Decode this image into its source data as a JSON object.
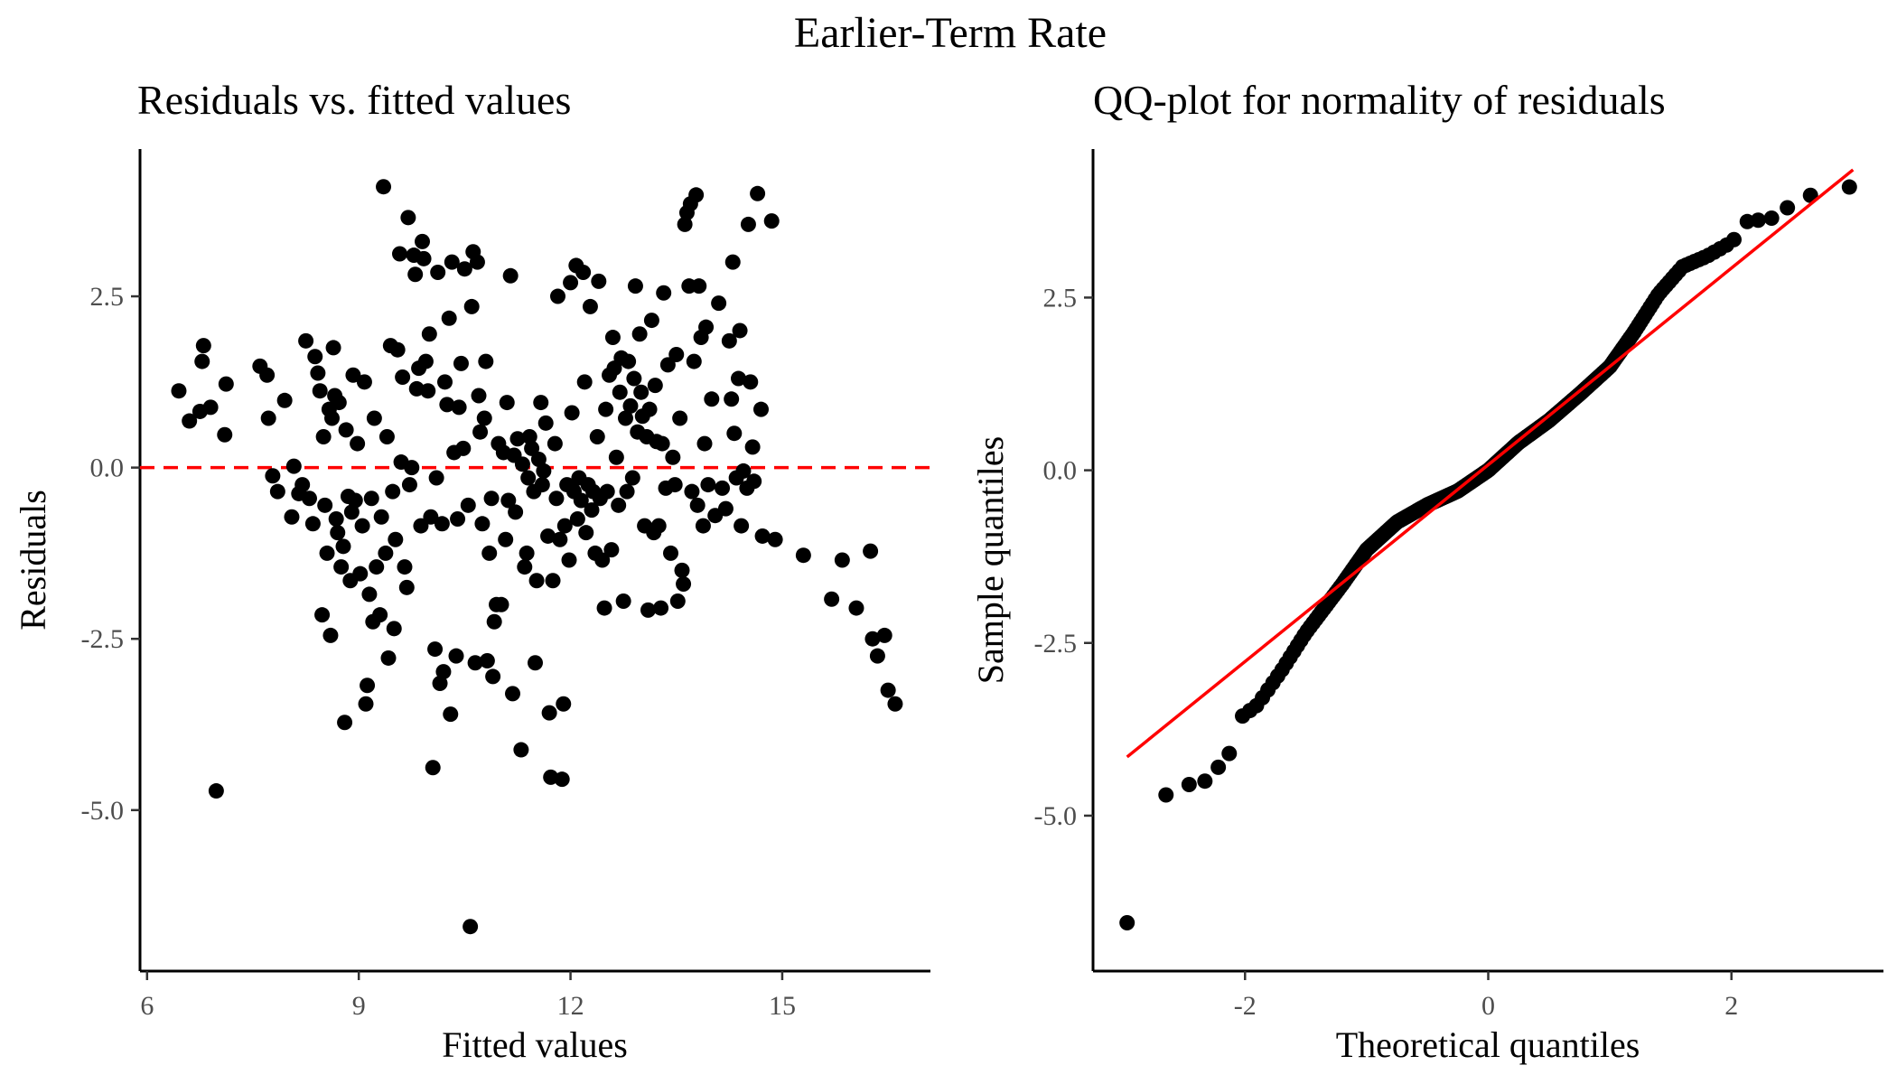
{
  "figure_title": "Earlier-Term Rate",
  "chart_data": [
    {
      "type": "scatter",
      "title": "Residuals vs. fitted values",
      "xlabel": "Fitted values",
      "ylabel": "Residuals",
      "xlim": [
        5.9,
        17.1
      ],
      "ylim": [
        -7.35,
        4.65
      ],
      "xticks": [
        6,
        9,
        12,
        15
      ],
      "yticks": [
        -5.0,
        -2.5,
        0.0,
        2.5
      ],
      "xtick_labels": [
        "6",
        "9",
        "12",
        "15"
      ],
      "ytick_labels": [
        "-5.0",
        "-2.5",
        "0.0",
        "2.5"
      ],
      "grid": false,
      "reference_line": {
        "y": 0,
        "style": "dashed",
        "color": "#ff0000"
      },
      "point_color": "#000000",
      "points": [
        [
          6.45,
          1.12
        ],
        [
          6.6,
          0.68
        ],
        [
          6.75,
          0.82
        ],
        [
          6.8,
          1.78
        ],
        [
          6.78,
          1.55
        ],
        [
          6.9,
          0.88
        ],
        [
          6.98,
          -4.72
        ],
        [
          7.1,
          0.48
        ],
        [
          7.12,
          1.22
        ],
        [
          7.6,
          1.48
        ],
        [
          7.7,
          1.35
        ],
        [
          7.72,
          0.72
        ],
        [
          7.78,
          -0.12
        ],
        [
          7.85,
          -0.35
        ],
        [
          7.95,
          0.98
        ],
        [
          8.05,
          -0.72
        ],
        [
          8.08,
          0.02
        ],
        [
          8.15,
          -0.38
        ],
        [
          8.2,
          -0.25
        ],
        [
          8.25,
          1.85
        ],
        [
          8.3,
          -0.45
        ],
        [
          8.35,
          -0.82
        ],
        [
          8.38,
          1.62
        ],
        [
          8.42,
          1.38
        ],
        [
          8.45,
          1.12
        ],
        [
          8.48,
          -2.15
        ],
        [
          8.5,
          0.45
        ],
        [
          8.52,
          -0.55
        ],
        [
          8.55,
          -1.25
        ],
        [
          8.58,
          0.85
        ],
        [
          8.6,
          -2.45
        ],
        [
          8.62,
          0.72
        ],
        [
          8.64,
          1.75
        ],
        [
          8.66,
          1.05
        ],
        [
          8.68,
          -0.75
        ],
        [
          8.7,
          -0.95
        ],
        [
          8.72,
          0.95
        ],
        [
          8.75,
          -1.45
        ],
        [
          8.78,
          -1.15
        ],
        [
          8.8,
          -3.72
        ],
        [
          8.82,
          0.55
        ],
        [
          8.85,
          -0.42
        ],
        [
          8.88,
          -1.65
        ],
        [
          8.9,
          -0.65
        ],
        [
          8.92,
          1.35
        ],
        [
          8.95,
          -0.48
        ],
        [
          8.98,
          0.35
        ],
        [
          9.02,
          -1.55
        ],
        [
          9.05,
          -0.85
        ],
        [
          9.08,
          1.25
        ],
        [
          9.1,
          -3.45
        ],
        [
          9.12,
          -3.18
        ],
        [
          9.15,
          -1.85
        ],
        [
          9.18,
          -0.45
        ],
        [
          9.2,
          -2.25
        ],
        [
          9.22,
          0.72
        ],
        [
          9.25,
          -1.45
        ],
        [
          9.3,
          -2.15
        ],
        [
          9.32,
          -0.72
        ],
        [
          9.35,
          4.1
        ],
        [
          9.38,
          -1.25
        ],
        [
          9.4,
          0.45
        ],
        [
          9.42,
          -2.78
        ],
        [
          9.45,
          1.78
        ],
        [
          9.48,
          -0.35
        ],
        [
          9.5,
          -2.35
        ],
        [
          9.52,
          -1.05
        ],
        [
          9.55,
          1.72
        ],
        [
          9.58,
          3.12
        ],
        [
          9.6,
          0.08
        ],
        [
          9.62,
          1.32
        ],
        [
          9.65,
          -1.45
        ],
        [
          9.68,
          -1.75
        ],
        [
          9.7,
          3.65
        ],
        [
          9.72,
          -0.25
        ],
        [
          9.75,
          0.0
        ],
        [
          9.78,
          3.1
        ],
        [
          9.8,
          2.82
        ],
        [
          9.82,
          1.15
        ],
        [
          9.85,
          1.45
        ],
        [
          9.88,
          -0.85
        ],
        [
          9.9,
          3.3
        ],
        [
          9.92,
          3.05
        ],
        [
          9.95,
          1.55
        ],
        [
          9.98,
          1.12
        ],
        [
          10.0,
          1.95
        ],
        [
          10.02,
          -0.72
        ],
        [
          10.05,
          -4.38
        ],
        [
          10.08,
          -2.65
        ],
        [
          10.1,
          -0.15
        ],
        [
          10.12,
          2.85
        ],
        [
          10.15,
          -3.15
        ],
        [
          10.18,
          -0.82
        ],
        [
          10.2,
          -2.98
        ],
        [
          10.22,
          1.25
        ],
        [
          10.25,
          0.92
        ],
        [
          10.28,
          2.18
        ],
        [
          10.3,
          -3.6
        ],
        [
          10.32,
          3.0
        ],
        [
          10.35,
          0.22
        ],
        [
          10.38,
          -2.75
        ],
        [
          10.4,
          -0.75
        ],
        [
          10.42,
          0.88
        ],
        [
          10.45,
          1.52
        ],
        [
          10.48,
          0.28
        ],
        [
          10.5,
          2.9
        ],
        [
          10.55,
          -0.55
        ],
        [
          10.58,
          -6.7
        ],
        [
          10.6,
          2.35
        ],
        [
          10.62,
          3.15
        ],
        [
          10.65,
          -2.85
        ],
        [
          10.68,
          3.0
        ],
        [
          10.7,
          1.05
        ],
        [
          10.72,
          0.52
        ],
        [
          10.75,
          -0.82
        ],
        [
          10.78,
          0.72
        ],
        [
          10.8,
          1.55
        ],
        [
          10.82,
          -2.82
        ],
        [
          10.85,
          -1.25
        ],
        [
          10.88,
          -0.45
        ],
        [
          10.9,
          -3.05
        ],
        [
          10.92,
          -2.25
        ],
        [
          10.95,
          -2.0
        ],
        [
          10.98,
          0.35
        ],
        [
          11.02,
          -2.0
        ],
        [
          11.05,
          0.22
        ],
        [
          11.08,
          -1.05
        ],
        [
          11.1,
          0.95
        ],
        [
          11.12,
          -0.48
        ],
        [
          11.15,
          2.8
        ],
        [
          11.18,
          -3.3
        ],
        [
          11.2,
          0.18
        ],
        [
          11.22,
          -0.65
        ],
        [
          11.25,
          0.42
        ],
        [
          11.3,
          -4.12
        ],
        [
          11.32,
          0.05
        ],
        [
          11.35,
          -1.45
        ],
        [
          11.38,
          -1.25
        ],
        [
          11.4,
          -0.15
        ],
        [
          11.42,
          0.45
        ],
        [
          11.45,
          0.28
        ],
        [
          11.48,
          -0.35
        ],
        [
          11.5,
          -2.85
        ],
        [
          11.52,
          -1.65
        ],
        [
          11.55,
          0.12
        ],
        [
          11.58,
          0.95
        ],
        [
          11.6,
          -0.25
        ],
        [
          11.62,
          -0.05
        ],
        [
          11.65,
          0.65
        ],
        [
          11.68,
          -1.0
        ],
        [
          11.7,
          -3.58
        ],
        [
          11.72,
          -4.52
        ],
        [
          11.75,
          -1.65
        ],
        [
          11.78,
          0.35
        ],
        [
          11.8,
          -0.45
        ],
        [
          11.82,
          2.5
        ],
        [
          11.85,
          -1.05
        ],
        [
          11.88,
          -4.55
        ],
        [
          11.9,
          -3.45
        ],
        [
          11.92,
          -0.85
        ],
        [
          11.95,
          -0.25
        ],
        [
          11.98,
          -1.35
        ],
        [
          12.0,
          2.7
        ],
        [
          12.02,
          0.8
        ],
        [
          12.05,
          -0.35
        ],
        [
          12.08,
          2.95
        ],
        [
          12.1,
          -0.75
        ],
        [
          12.12,
          -0.15
        ],
        [
          12.15,
          -0.48
        ],
        [
          12.18,
          2.85
        ],
        [
          12.2,
          1.25
        ],
        [
          12.22,
          -0.95
        ],
        [
          12.25,
          -0.25
        ],
        [
          12.28,
          2.35
        ],
        [
          12.3,
          -0.62
        ],
        [
          12.32,
          -0.35
        ],
        [
          12.35,
          -1.25
        ],
        [
          12.38,
          0.45
        ],
        [
          12.4,
          2.72
        ],
        [
          12.42,
          -0.45
        ],
        [
          12.45,
          -1.35
        ],
        [
          12.48,
          -2.05
        ],
        [
          12.5,
          0.85
        ],
        [
          12.52,
          -0.35
        ],
        [
          12.55,
          1.35
        ],
        [
          12.58,
          -1.2
        ],
        [
          12.6,
          1.9
        ],
        [
          12.62,
          1.45
        ],
        [
          12.65,
          0.15
        ],
        [
          12.68,
          -0.55
        ],
        [
          12.7,
          1.1
        ],
        [
          12.72,
          1.6
        ],
        [
          12.75,
          -1.95
        ],
        [
          12.78,
          0.72
        ],
        [
          12.8,
          -0.35
        ],
        [
          12.82,
          1.55
        ],
        [
          12.85,
          0.9
        ],
        [
          12.88,
          -0.15
        ],
        [
          12.9,
          1.3
        ],
        [
          12.92,
          2.65
        ],
        [
          12.95,
          0.52
        ],
        [
          12.98,
          1.95
        ],
        [
          13.0,
          1.1
        ],
        [
          13.02,
          0.75
        ],
        [
          13.05,
          -0.85
        ],
        [
          13.08,
          0.45
        ],
        [
          13.1,
          -2.08
        ],
        [
          13.12,
          0.85
        ],
        [
          13.15,
          2.15
        ],
        [
          13.18,
          -0.95
        ],
        [
          13.2,
          1.2
        ],
        [
          13.22,
          0.38
        ],
        [
          13.25,
          -0.85
        ],
        [
          13.28,
          -2.05
        ],
        [
          13.3,
          0.35
        ],
        [
          13.32,
          2.55
        ],
        [
          13.35,
          -0.3
        ],
        [
          13.38,
          1.5
        ],
        [
          13.42,
          -1.25
        ],
        [
          13.45,
          0.15
        ],
        [
          13.48,
          -0.25
        ],
        [
          13.5,
          1.65
        ],
        [
          13.52,
          -1.95
        ],
        [
          13.55,
          0.72
        ],
        [
          13.58,
          -1.5
        ],
        [
          13.6,
          -1.7
        ],
        [
          13.62,
          3.55
        ],
        [
          13.65,
          3.72
        ],
        [
          13.68,
          2.65
        ],
        [
          13.7,
          3.85
        ],
        [
          13.72,
          -0.35
        ],
        [
          13.75,
          1.55
        ],
        [
          13.78,
          3.98
        ],
        [
          13.8,
          -0.55
        ],
        [
          13.82,
          2.65
        ],
        [
          13.85,
          1.9
        ],
        [
          13.88,
          -0.85
        ],
        [
          13.9,
          0.35
        ],
        [
          13.92,
          2.05
        ],
        [
          13.95,
          -0.25
        ],
        [
          14.0,
          1.0
        ],
        [
          14.05,
          -0.7
        ],
        [
          14.1,
          2.4
        ],
        [
          14.15,
          -0.3
        ],
        [
          14.2,
          -0.6
        ],
        [
          14.25,
          1.85
        ],
        [
          14.28,
          1.0
        ],
        [
          14.3,
          3.0
        ],
        [
          14.32,
          0.5
        ],
        [
          14.35,
          -0.15
        ],
        [
          14.38,
          1.3
        ],
        [
          14.4,
          2.0
        ],
        [
          14.42,
          -0.85
        ],
        [
          14.45,
          -0.05
        ],
        [
          14.5,
          -0.3
        ],
        [
          14.52,
          3.55
        ],
        [
          14.55,
          1.25
        ],
        [
          14.58,
          0.3
        ],
        [
          14.6,
          -0.2
        ],
        [
          14.65,
          4.0
        ],
        [
          14.7,
          0.85
        ],
        [
          14.72,
          -1.0
        ],
        [
          14.85,
          3.6
        ],
        [
          14.9,
          -1.05
        ],
        [
          15.3,
          -1.28
        ],
        [
          15.7,
          -1.92
        ],
        [
          15.85,
          -1.35
        ],
        [
          16.05,
          -2.05
        ],
        [
          16.25,
          -1.22
        ],
        [
          16.28,
          -2.5
        ],
        [
          16.35,
          -2.75
        ],
        [
          16.45,
          -2.45
        ],
        [
          16.5,
          -3.25
        ],
        [
          16.6,
          -3.45
        ]
      ]
    },
    {
      "type": "scatter",
      "title": "QQ-plot for normality of residuals",
      "xlabel": "Theoretical quantiles",
      "ylabel": "Sample quantiles",
      "xlim": [
        -3.25,
        3.25
      ],
      "ylim": [
        -7.25,
        4.65
      ],
      "xticks": [
        -2,
        0,
        2
      ],
      "yticks": [
        -5.0,
        -2.5,
        0.0,
        2.5
      ],
      "xtick_labels": [
        "-2",
        "0",
        "2"
      ],
      "ytick_labels": [
        "-5.0",
        "-2.5",
        "0.0",
        "2.5"
      ],
      "grid": false,
      "reference_line": {
        "x": [
          -2.97,
          3.0
        ],
        "y": [
          -4.15,
          4.35
        ],
        "color": "#ff0000"
      },
      "point_color": "#000000",
      "n_points": 300,
      "points": [
        [
          -2.97,
          -6.55
        ],
        [
          -2.65,
          -4.7
        ],
        [
          -2.46,
          -4.55
        ],
        [
          -2.33,
          -4.5
        ],
        [
          -2.22,
          -4.3
        ],
        [
          -2.13,
          -4.1
        ],
        [
          2.13,
          3.6
        ],
        [
          2.22,
          3.62
        ],
        [
          2.33,
          3.65
        ],
        [
          2.46,
          3.8
        ],
        [
          2.65,
          3.98
        ],
        [
          2.97,
          4.1
        ]
      ],
      "body_curve": {
        "q": [
          -2.13,
          -1.9,
          -1.7,
          -1.5,
          -1.2,
          -1.0,
          -0.75,
          -0.5,
          -0.25,
          0.0,
          0.25,
          0.5,
          0.75,
          1.0,
          1.2,
          1.4,
          1.5,
          1.6,
          1.8,
          2.0,
          2.13
        ],
        "s": [
          -3.7,
          -3.4,
          -2.9,
          -2.35,
          -1.65,
          -1.15,
          -0.75,
          -0.5,
          -0.3,
          0.0,
          0.4,
          0.72,
          1.1,
          1.5,
          2.0,
          2.55,
          2.75,
          2.95,
          3.1,
          3.3,
          3.55
        ]
      }
    }
  ]
}
